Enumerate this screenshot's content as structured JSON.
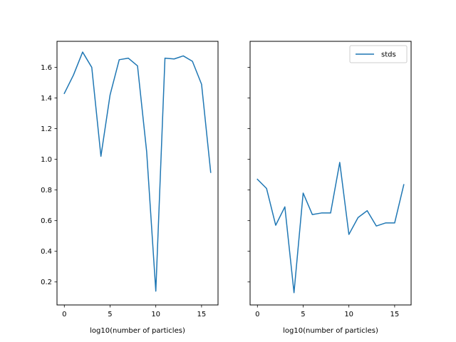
{
  "chart_data": [
    {
      "type": "line",
      "title": "",
      "xlabel": "log10(number of particles)",
      "ylabel": "",
      "xlim": [
        -0.8,
        16.8
      ],
      "ylim": [
        0.05,
        1.77
      ],
      "xticks": [
        0,
        5,
        10,
        15
      ],
      "yticks": [
        0.2,
        0.4,
        0.6,
        0.8,
        1.0,
        1.2,
        1.4,
        1.6
      ],
      "ytick_labels": [
        "0.2",
        "0.4",
        "0.6",
        "0.8",
        "1.0",
        "1.2",
        "1.4",
        "1.6"
      ],
      "grid": false,
      "legend": null,
      "series": [
        {
          "color": "#1f77b4",
          "x": [
            0,
            1,
            2,
            3,
            4,
            5,
            6,
            7,
            8,
            9,
            10,
            11,
            12,
            13,
            14,
            15,
            16
          ],
          "values": [
            1.43,
            1.55,
            1.7,
            1.6,
            1.02,
            1.42,
            1.65,
            1.66,
            1.61,
            1.05,
            0.14,
            1.66,
            1.655,
            1.675,
            1.64,
            1.49,
            0.915
          ]
        }
      ]
    },
    {
      "type": "line",
      "title": "",
      "xlabel": "log10(number of particles)",
      "ylabel": "",
      "xlim": [
        -0.8,
        16.8
      ],
      "ylim": [
        0.05,
        1.77
      ],
      "xticks": [
        0,
        5,
        10,
        15
      ],
      "yticks": [
        0.2,
        0.4,
        0.6,
        0.8,
        1.0,
        1.2,
        1.4,
        1.6
      ],
      "shared_y": true,
      "grid": false,
      "legend": "top-right",
      "series": [
        {
          "name": "stds",
          "color": "#1f77b4",
          "x": [
            0,
            1,
            2,
            3,
            4,
            5,
            6,
            7,
            8,
            9,
            10,
            11,
            12,
            13,
            14,
            15,
            16
          ],
          "values": [
            0.87,
            0.81,
            0.57,
            0.69,
            0.13,
            0.78,
            0.64,
            0.65,
            0.65,
            0.98,
            0.51,
            0.62,
            0.665,
            0.565,
            0.585,
            0.585,
            0.835
          ]
        }
      ]
    }
  ]
}
